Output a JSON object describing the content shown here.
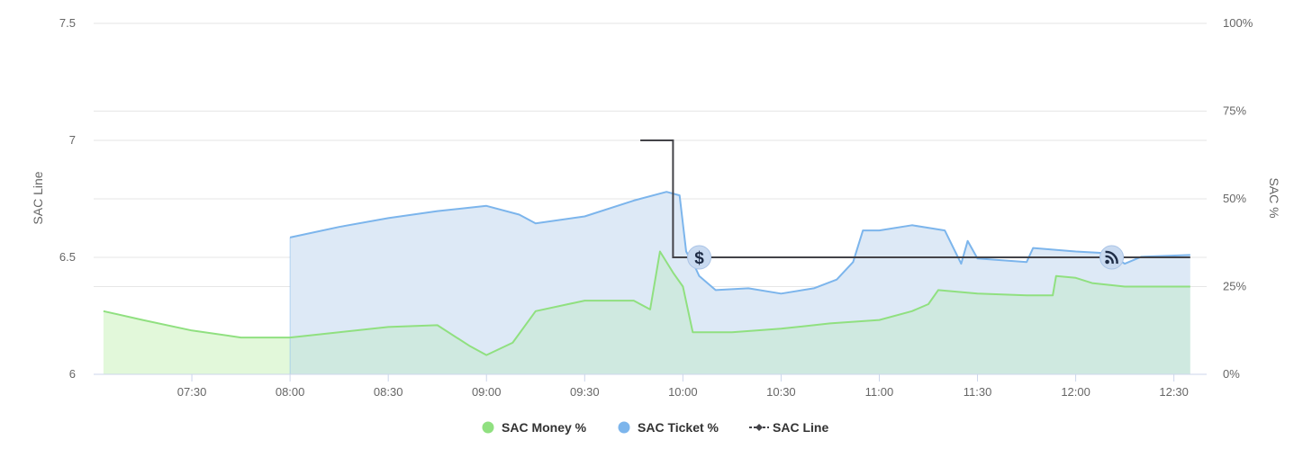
{
  "chart_data": {
    "type": "area",
    "x_axis": {
      "type": "time",
      "range": [
        "07:00",
        "12:40"
      ],
      "tick_labels": [
        "07:30",
        "08:00",
        "08:30",
        "09:00",
        "09:30",
        "10:00",
        "10:30",
        "11:00",
        "11:30",
        "12:00",
        "12:30"
      ]
    },
    "y_axis_left": {
      "title": "SAC Line",
      "range": [
        6,
        7.5
      ],
      "tick_labels": [
        "6",
        "6.5",
        "7",
        "7.5"
      ]
    },
    "y_axis_right": {
      "title": "SAC %",
      "range": [
        0,
        100
      ],
      "tick_labels": [
        "0%",
        "25%",
        "50%",
        "75%",
        "100%"
      ]
    },
    "grid": true,
    "legend_position": "bottom-center",
    "legend": [
      {
        "label": "SAC Money %",
        "color": "#90e080",
        "marker": "circle"
      },
      {
        "label": "SAC Ticket %",
        "color": "#7cb5ec",
        "marker": "circle"
      },
      {
        "label": "SAC Line",
        "color": "#434348",
        "marker": "line-diamond"
      }
    ],
    "series": [
      {
        "name": "SAC Money %",
        "axis": "right",
        "color": "#90e080",
        "fill_before": "#e2f8da",
        "fill_after": "#cfe9e0",
        "fill_split_at": "08:00",
        "points": [
          [
            "07:03",
            18
          ],
          [
            "07:15",
            15.5
          ],
          [
            "07:30",
            12.5
          ],
          [
            "07:45",
            10.5
          ],
          [
            "08:00",
            10.5
          ],
          [
            "08:15",
            12
          ],
          [
            "08:30",
            13.5
          ],
          [
            "08:45",
            14
          ],
          [
            "08:55",
            8
          ],
          [
            "09:00",
            5.5
          ],
          [
            "09:08",
            9
          ],
          [
            "09:15",
            18
          ],
          [
            "09:30",
            21
          ],
          [
            "09:45",
            21
          ],
          [
            "09:50",
            18.5
          ],
          [
            "09:53",
            35
          ],
          [
            "09:57",
            29
          ],
          [
            "10:00",
            25
          ],
          [
            "10:03",
            12
          ],
          [
            "10:15",
            12
          ],
          [
            "10:30",
            13
          ],
          [
            "10:45",
            14.5
          ],
          [
            "11:00",
            15.5
          ],
          [
            "11:10",
            18
          ],
          [
            "11:15",
            20
          ],
          [
            "11:18",
            24
          ],
          [
            "11:30",
            23
          ],
          [
            "11:45",
            22.5
          ],
          [
            "11:53",
            22.5
          ],
          [
            "11:54",
            28
          ],
          [
            "12:00",
            27.5
          ],
          [
            "12:05",
            26
          ],
          [
            "12:15",
            25
          ],
          [
            "12:35",
            25
          ]
        ]
      },
      {
        "name": "SAC Ticket %",
        "axis": "right",
        "color": "#7cb5ec",
        "fill": "#dde9f6",
        "points": [
          [
            "08:00",
            39
          ],
          [
            "08:15",
            42
          ],
          [
            "08:30",
            44.5
          ],
          [
            "08:45",
            46.5
          ],
          [
            "09:00",
            48
          ],
          [
            "09:10",
            45.5
          ],
          [
            "09:15",
            43
          ],
          [
            "09:30",
            45
          ],
          [
            "09:45",
            49.5
          ],
          [
            "09:55",
            52
          ],
          [
            "09:59",
            51
          ],
          [
            "10:01",
            35
          ],
          [
            "10:04",
            30
          ],
          [
            "10:05",
            28
          ],
          [
            "10:10",
            24
          ],
          [
            "10:20",
            24.5
          ],
          [
            "10:30",
            23
          ],
          [
            "10:40",
            24.5
          ],
          [
            "10:47",
            27
          ],
          [
            "10:52",
            32
          ],
          [
            "10:55",
            41
          ],
          [
            "11:00",
            41
          ],
          [
            "11:10",
            42.5
          ],
          [
            "11:20",
            41
          ],
          [
            "11:25",
            31.5
          ],
          [
            "11:27",
            38
          ],
          [
            "11:30",
            33
          ],
          [
            "11:45",
            32
          ],
          [
            "11:47",
            36
          ],
          [
            "12:00",
            35
          ],
          [
            "12:10",
            34.5
          ],
          [
            "12:15",
            31.5
          ],
          [
            "12:20",
            33.5
          ],
          [
            "12:35",
            34
          ]
        ]
      },
      {
        "name": "SAC Line",
        "axis": "left",
        "color": "#434348",
        "step": true,
        "points": [
          [
            "09:47",
            7
          ],
          [
            "09:57",
            7
          ],
          [
            "09:57",
            6.5
          ],
          [
            "12:35",
            6.5
          ]
        ]
      }
    ],
    "annotations": [
      {
        "type": "flag",
        "icon": "dollar-icon",
        "label": "$",
        "x": "10:05",
        "y_left": 6.5
      },
      {
        "type": "flag",
        "icon": "rss-icon",
        "label": "",
        "x": "12:11",
        "y_left": 6.5
      }
    ]
  }
}
